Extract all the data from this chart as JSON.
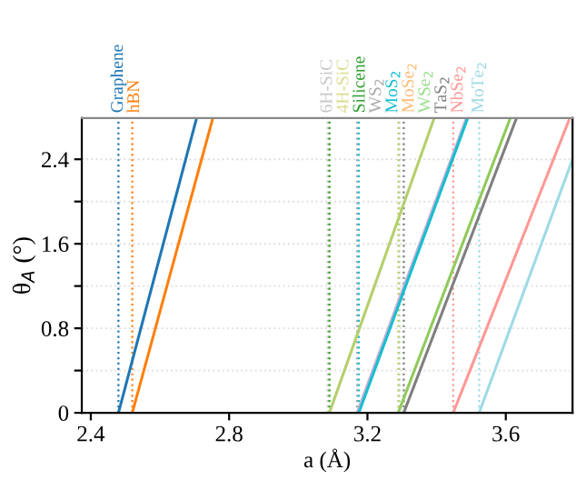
{
  "chart_data": {
    "type": "line",
    "xlabel": "a (Å)",
    "ylabel": "θ$_{A}$ (°)",
    "xlim": [
      2.374,
      3.793
    ],
    "ylim": [
      0,
      2.79
    ],
    "xticks": [
      2.4,
      2.8,
      3.2,
      3.6
    ],
    "yticks": [
      0,
      {
        "value": 0.4,
        "label": null
      },
      0.8,
      {
        "value": 1.2,
        "label": null
      },
      1.6,
      {
        "value": 2.0,
        "label": null
      },
      2.4
    ],
    "grid": "y",
    "marker": "none",
    "line_style": "solid",
    "series": [
      {
        "color": "#1f77b4",
        "x": [
          2.48,
          2.706
        ],
        "values": [
          0,
          2.79
        ]
      },
      {
        "color": "#ff7f0e",
        "x": [
          2.52,
          2.753
        ],
        "values": [
          0,
          2.79
        ]
      },
      {
        "color": "#b5cf6b",
        "x": [
          3.09,
          3.393
        ],
        "values": [
          0,
          2.79
        ]
      },
      {
        "color": "#c5b0d5",
        "x": [
          3.17,
          3.486
        ],
        "values": [
          0,
          2.79
        ]
      },
      {
        "color": "#17becf",
        "x": [
          3.175,
          3.49
        ],
        "values": [
          0,
          2.79
        ]
      },
      {
        "color": "#8fca5a",
        "x": [
          3.289,
          3.613
        ],
        "values": [
          0,
          2.79
        ]
      },
      {
        "color": "#7f7f7f",
        "x": [
          3.305,
          3.631
        ],
        "values": [
          0,
          2.79
        ]
      },
      {
        "color": "#ff9896",
        "x": [
          3.448,
          3.785
        ],
        "values": [
          0,
          2.79
        ]
      },
      {
        "color": "#9edae5",
        "x": [
          3.523,
          3.793
        ],
        "values": [
          0,
          2.4
        ]
      }
    ],
    "ref_lines": [
      {
        "axis": "x",
        "value": 2.48,
        "label": "Graphene",
        "color": "#1f77b4",
        "line_style": "dotted"
      },
      {
        "axis": "x",
        "value": 2.52,
        "label": "hBN",
        "color": "#ff7f0e",
        "line_style": "dotted"
      },
      {
        "axis": "x",
        "value": 3.085,
        "label": "6H-SiC",
        "color": "#c7c7c7",
        "line_style": "dotted"
      },
      {
        "axis": "x",
        "value": 3.09,
        "label": "4H-SiC",
        "color": "#dbdb8d",
        "line_style": "dotted"
      },
      {
        "axis": "x",
        "value": 3.09,
        "label": "Silicene",
        "color": "#2ca02c",
        "line_style": "dotted"
      },
      {
        "axis": "x",
        "value": 3.17,
        "label": "WS$_{2}$",
        "color": "#aaaaaa",
        "line_style": "dotted"
      },
      {
        "axis": "x",
        "value": 3.175,
        "label": "MoS$_{2}$",
        "color": "#17becf",
        "line_style": "dotted"
      },
      {
        "axis": "x",
        "value": 3.289,
        "label": "MoSe$_{2}$",
        "color": "#ffbb78",
        "line_style": "dotted"
      },
      {
        "axis": "x",
        "value": 3.292,
        "label": "WSe$_{2}$",
        "color": "#98df8a",
        "line_style": "dotted"
      },
      {
        "axis": "x",
        "value": 3.305,
        "label": "TaS$_{2}$",
        "color": "#7f7f7f",
        "line_style": "dotted"
      },
      {
        "axis": "x",
        "value": 3.448,
        "label": "NbSe$_{2}$",
        "color": "#ff9896",
        "line_style": "dotted"
      },
      {
        "axis": "x",
        "value": 3.523,
        "label": "MoTe$_{2}$",
        "color": "#9edae5",
        "line_style": "dotted"
      }
    ]
  }
}
